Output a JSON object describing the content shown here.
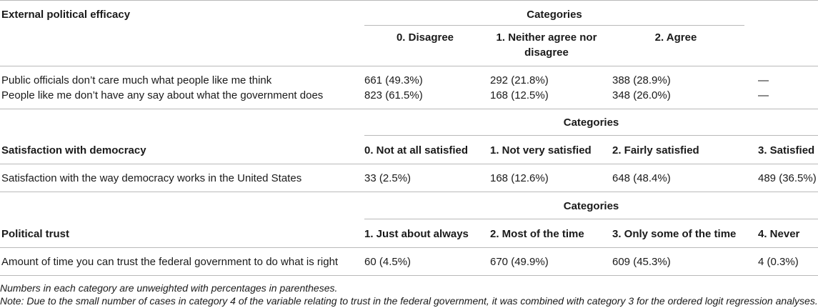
{
  "section1": {
    "title": "External political efficacy",
    "categories_label": "Categories",
    "columns": [
      "0. Disagree",
      "1. Neither agree nor",
      "disagree",
      "2. Agree"
    ],
    "rows": [
      {
        "label": "Public officials don’t care much what people like me think",
        "values": [
          "661 (49.3%)",
          "292 (21.8%)",
          "388 (28.9%)",
          "—"
        ]
      },
      {
        "label": "People like me don’t have any say about what the government does",
        "values": [
          "823 (61.5%)",
          "168 (12.5%)",
          "348 (26.0%)",
          "—"
        ]
      }
    ]
  },
  "section2": {
    "categories_label": "Categories",
    "title": "Satisfaction with democracy",
    "columns": [
      "0. Not at all satisfied",
      "1. Not very satisfied",
      "2. Fairly satisfied",
      "3. Satisfied"
    ],
    "rows": [
      {
        "label": "Satisfaction with the way democracy works in the United States",
        "values": [
          "33 (2.5%)",
          "168 (12.6%)",
          "648 (48.4%)",
          "489 (36.5%)"
        ]
      }
    ]
  },
  "section3": {
    "categories_label": "Categories",
    "title": "Political trust",
    "columns": [
      "1. Just about always",
      "2. Most of the time",
      "3. Only some of the time",
      "4. Never"
    ],
    "rows": [
      {
        "label": "Amount of time you can trust the federal government to do what is right",
        "values": [
          "60 (4.5%)",
          "670 (49.9%)",
          "609 (45.3%)",
          "4 (0.3%)"
        ]
      }
    ]
  },
  "notes": [
    "Numbers in each category are unweighted with percentages in parentheses.",
    "Note: Due to the small number of cases in category 4 of the variable relating to trust in the federal government, it was combined with category 3 for the ordered logit regression analyses."
  ]
}
